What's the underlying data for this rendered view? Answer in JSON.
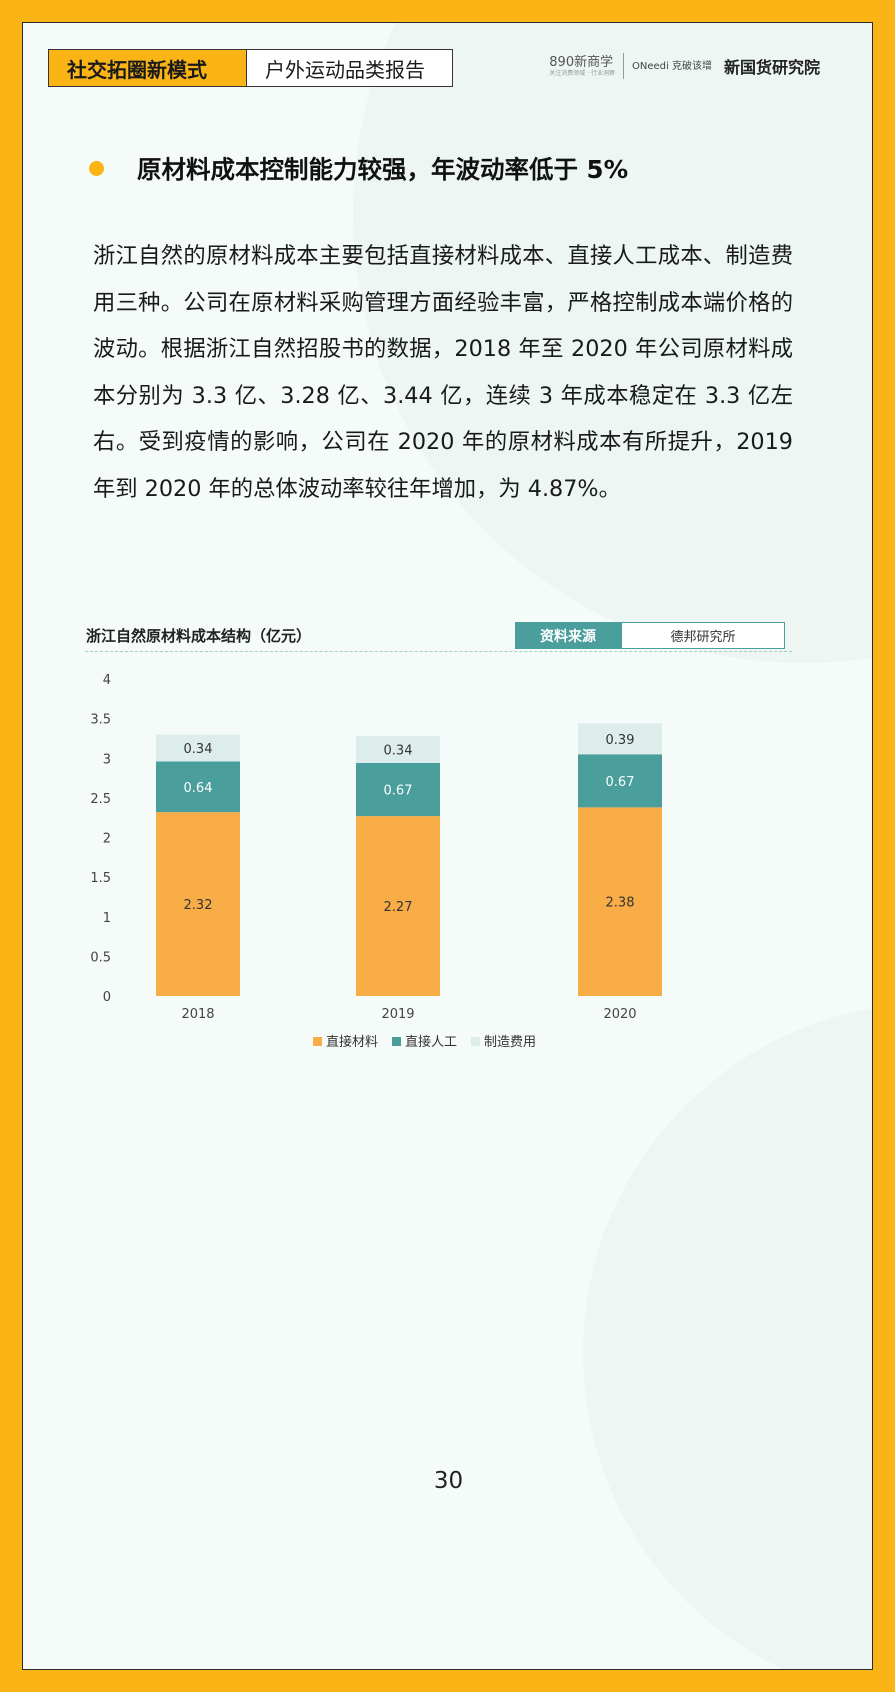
{
  "header": {
    "tag_left": "社交拓圈新模式",
    "tag_right": "户外运动品类报告",
    "logo1": "890新商学",
    "logo1_sub": "关注消费领域 · 行业洞察",
    "logo2": "ONeedi 克破该增",
    "logo3": "新国货研究院"
  },
  "heading": "原材料成本控制能力较强，年波动率低于 5%",
  "body_text": "浙江自然的原材料成本主要包括直接材料成本、直接人工成本、制造费用三种。公司在原材料采购管理方面经验丰富，严格控制成本端价格的波动。根据浙江自然招股书的数据，2018 年至 2020 年公司原材料成本分别为 3.3 亿、3.28 亿、3.44 亿，连续 3 年成本稳定在 3.3 亿左右。受到疫情的影响，公司在 2020 年的原材料成本有所提升，2019 年到 2020 年的总体波动率较往年增加，为 4.87%。",
  "source": {
    "label": "资料来源",
    "value": "德邦研究所"
  },
  "chart_data": {
    "type": "bar",
    "stacked": true,
    "title": "浙江自然原材料成本结构（亿元）",
    "categories": [
      "2018",
      "2019",
      "2020"
    ],
    "series": [
      {
        "name": "直接材料",
        "values": [
          2.32,
          2.27,
          2.38
        ],
        "color": "#F8AD47"
      },
      {
        "name": "直接人工",
        "values": [
          0.64,
          0.67,
          0.67
        ],
        "color": "#4A9E9C"
      },
      {
        "name": "制造费用",
        "values": [
          0.34,
          0.34,
          0.39
        ],
        "color": "#DDEDEC"
      }
    ],
    "ylim": [
      0,
      4
    ],
    "yticks": [
      "0",
      "0.5",
      "1",
      "1.5",
      "2",
      "2.5",
      "3",
      "3.5",
      "4"
    ],
    "grid": false,
    "legend": "bottom",
    "xlabel": "",
    "ylabel": ""
  },
  "page_number": "30"
}
